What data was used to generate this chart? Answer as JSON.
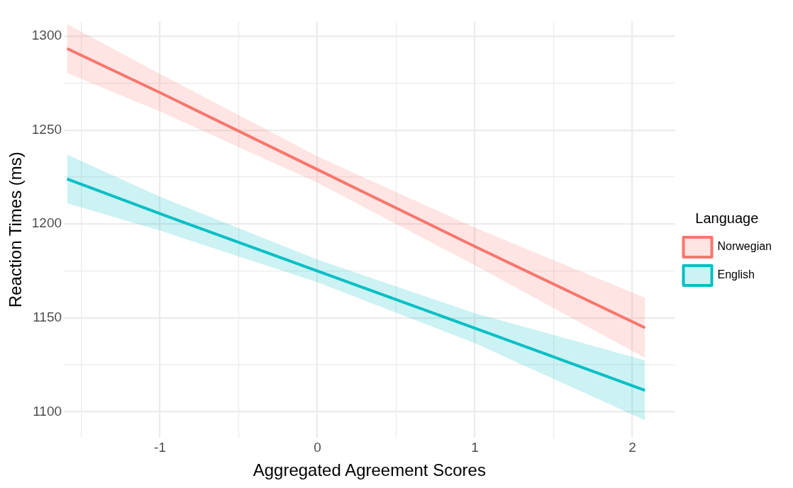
{
  "chart_data": {
    "type": "line",
    "xlabel": "Aggregated Agreement Scores",
    "ylabel": "Reaction Times (ms)",
    "legend_title": "Language",
    "legend": "right",
    "grid": true,
    "marker": "none",
    "line_style": "solid",
    "xlim": [
      -1.61,
      2.27
    ],
    "ylim": [
      1086,
      1308
    ],
    "xticks": [
      {
        "value": -1.5,
        "label": null
      },
      -1,
      {
        "value": -0.5,
        "label": null
      },
      0,
      {
        "value": 0.5,
        "label": null
      },
      1,
      {
        "value": 1.5,
        "label": null
      },
      2
    ],
    "yticks": [
      1100,
      {
        "value": 1125,
        "label": null
      },
      1150,
      {
        "value": 1175,
        "label": null
      },
      1200,
      {
        "value": 1225,
        "label": null
      },
      1250,
      {
        "value": 1275,
        "label": null
      },
      1300
    ],
    "series": [
      {
        "name": "Norwegian",
        "color": "#f8766d",
        "x": [
          -1.59,
          -1,
          0,
          1,
          2.08
        ],
        "values": [
          1293.5,
          1270,
          1229,
          1188,
          1144.7
        ],
        "lower": [
          1280.5,
          1260,
          1222,
          1178,
          1128.7
        ],
        "upper": [
          1306.5,
          1280,
          1236,
          1198,
          1160.7
        ]
      },
      {
        "name": "English",
        "color": "#00bfc4",
        "x": [
          -1.59,
          -1,
          0,
          1,
          2.08
        ],
        "values": [
          1224,
          1205.5,
          1175,
          1144.5,
          1111.4
        ],
        "lower": [
          1211,
          1196.5,
          1169,
          1136.5,
          1095.4
        ],
        "upper": [
          1237,
          1214.5,
          1181,
          1152.5,
          1127.4
        ]
      }
    ]
  }
}
